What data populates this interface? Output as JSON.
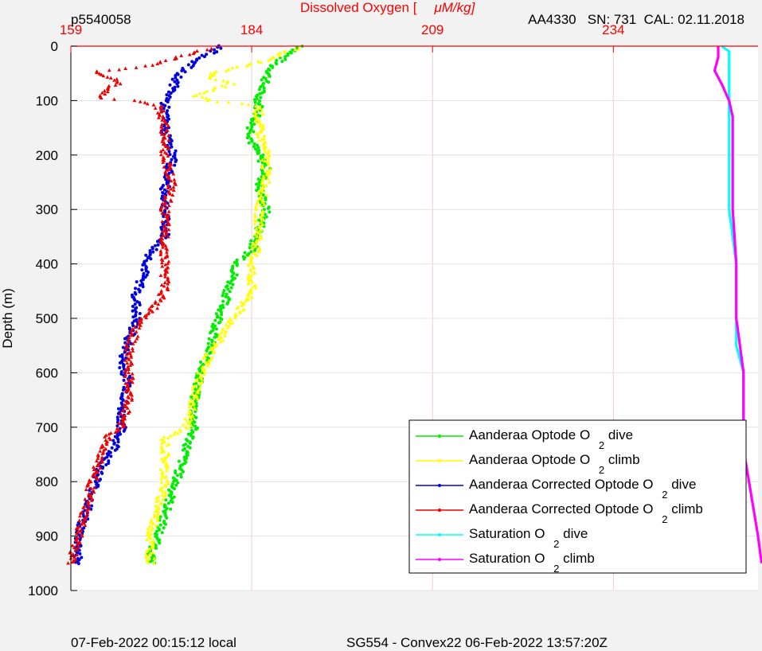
{
  "chart_data": {
    "type": "scatter",
    "top_left_label": "p5540058",
    "top_right_label": "AA4330   SN: 731  CAL: 02.11.2018",
    "title_prefix": "Dissolved Oxygen [",
    "title_unit": "μM/kg]",
    "ylabel": "Depth (m)",
    "footer_left": "07-Feb-2022 00:15:12 local",
    "footer_center": "SG554 - Convex22 06-Feb-2022 13:57:20Z",
    "xlim": [
      159,
      254
    ],
    "ylim": [
      0,
      1000
    ],
    "y_reversed": true,
    "x_ticks": [
      159,
      184,
      209,
      234
    ],
    "y_ticks": [
      0,
      100,
      200,
      300,
      400,
      500,
      600,
      700,
      800,
      900,
      1000
    ],
    "grid": true,
    "legend_position": "bottom-right",
    "colors": {
      "optode_dive": "#00ee00",
      "optode_climb": "#ffff00",
      "corrected_dive": "#0000dd",
      "corrected_climb": "#ee0000",
      "saturation_dive": "#00ffff",
      "saturation_climb": "#ff00ff"
    },
    "series": [
      {
        "key": "optode_dive",
        "name": "Aanderaa Optode O",
        "sub": "2",
        "suffix": "dive",
        "marker": "dot",
        "points": [
          [
            191,
            0
          ],
          [
            189,
            15
          ],
          [
            187,
            35
          ],
          [
            186,
            60
          ],
          [
            185,
            90
          ],
          [
            185,
            120
          ],
          [
            184,
            150
          ],
          [
            184,
            175
          ],
          [
            185,
            200
          ],
          [
            186,
            225
          ],
          [
            185,
            260
          ],
          [
            186,
            300
          ],
          [
            185,
            340
          ],
          [
            184,
            375
          ],
          [
            182,
            400
          ],
          [
            181,
            440
          ],
          [
            180,
            480
          ],
          [
            179,
            520
          ],
          [
            178,
            560
          ],
          [
            177,
            600
          ],
          [
            176,
            650
          ],
          [
            176,
            700
          ],
          [
            175,
            740
          ],
          [
            174,
            780
          ],
          [
            173,
            820
          ],
          [
            172,
            860
          ],
          [
            171,
            900
          ],
          [
            170,
            940
          ],
          [
            170,
            950
          ]
        ]
      },
      {
        "key": "optode_climb",
        "name": "Aanderaa Optode O",
        "sub": "2",
        "suffix": "climb",
        "marker": "tri",
        "points": [
          [
            190,
            5
          ],
          [
            188,
            15
          ],
          [
            185,
            30
          ],
          [
            180,
            45
          ],
          [
            178,
            55
          ],
          [
            181,
            70
          ],
          [
            176,
            90
          ],
          [
            178,
            100
          ],
          [
            185,
            110
          ],
          [
            185,
            150
          ],
          [
            186,
            200
          ],
          [
            186,
            250
          ],
          [
            185,
            300
          ],
          [
            185,
            350
          ],
          [
            184,
            400
          ],
          [
            184,
            450
          ],
          [
            182,
            490
          ],
          [
            180,
            530
          ],
          [
            178,
            570
          ],
          [
            177,
            600
          ],
          [
            176,
            650
          ],
          [
            175,
            700
          ],
          [
            172,
            720
          ],
          [
            172,
            760
          ],
          [
            172,
            800
          ],
          [
            171,
            850
          ],
          [
            170,
            900
          ],
          [
            170,
            950
          ]
        ]
      },
      {
        "key": "corrected_dive",
        "name": "Aanderaa Corrected Optode O",
        "sub": "2",
        "suffix": "dive",
        "marker": "dot",
        "points": [
          [
            180,
            0
          ],
          [
            178,
            15
          ],
          [
            176,
            30
          ],
          [
            174,
            50
          ],
          [
            173,
            80
          ],
          [
            172,
            105
          ],
          [
            172,
            130
          ],
          [
            172,
            160
          ],
          [
            173,
            185
          ],
          [
            173,
            210
          ],
          [
            172,
            260
          ],
          [
            172,
            300
          ],
          [
            172,
            350
          ],
          [
            170,
            380
          ],
          [
            169,
            420
          ],
          [
            168,
            460
          ],
          [
            168,
            500
          ],
          [
            167,
            540
          ],
          [
            166,
            580
          ],
          [
            167,
            620
          ],
          [
            166,
            660
          ],
          [
            166,
            700
          ],
          [
            165,
            740
          ],
          [
            163,
            780
          ],
          [
            162,
            820
          ],
          [
            161,
            860
          ],
          [
            160,
            900
          ],
          [
            160,
            950
          ]
        ]
      },
      {
        "key": "corrected_climb",
        "name": "Aanderaa Corrected Optode O",
        "sub": "2",
        "suffix": "climb",
        "marker": "tri",
        "points": [
          [
            178,
            5
          ],
          [
            174,
            20
          ],
          [
            170,
            35
          ],
          [
            164,
            45
          ],
          [
            162,
            48
          ],
          [
            166,
            65
          ],
          [
            164,
            80
          ],
          [
            163,
            95
          ],
          [
            168,
            100
          ],
          [
            171,
            110
          ],
          [
            172,
            140
          ],
          [
            172,
            200
          ],
          [
            173,
            250
          ],
          [
            172,
            300
          ],
          [
            172,
            350
          ],
          [
            172,
            400
          ],
          [
            172,
            450
          ],
          [
            170,
            490
          ],
          [
            168,
            520
          ],
          [
            167,
            560
          ],
          [
            167,
            600
          ],
          [
            167,
            650
          ],
          [
            166,
            700
          ],
          [
            164,
            720
          ],
          [
            163,
            760
          ],
          [
            162,
            800
          ],
          [
            161,
            850
          ],
          [
            160,
            900
          ],
          [
            159,
            950
          ]
        ]
      },
      {
        "key": "saturation_dive",
        "name": "Saturation O",
        "sub": "2",
        "suffix": "dive",
        "marker": "dot",
        "points": [
          [
            249,
            0
          ],
          [
            250,
            10
          ],
          [
            250,
            40
          ],
          [
            250,
            80
          ],
          [
            250,
            120
          ],
          [
            250,
            160
          ],
          [
            250,
            200
          ],
          [
            250,
            300
          ],
          [
            251,
            400
          ],
          [
            251,
            470
          ],
          [
            251,
            500
          ],
          [
            251,
            550
          ],
          [
            252,
            600
          ],
          [
            252,
            650
          ],
          [
            252,
            700
          ],
          [
            252,
            740
          ]
        ]
      },
      {
        "key": "saturation_climb",
        "name": "Saturation O",
        "sub": "2",
        "suffix": "climb",
        "marker": "dot",
        "points": [
          [
            248.5,
            0
          ],
          [
            248.5,
            20
          ],
          [
            248,
            45
          ],
          [
            249,
            70
          ],
          [
            250,
            100
          ],
          [
            250.5,
            130
          ],
          [
            250.5,
            160
          ],
          [
            250.5,
            200
          ],
          [
            250.5,
            300
          ],
          [
            251,
            400
          ],
          [
            251,
            470
          ],
          [
            251,
            500
          ],
          [
            251.5,
            550
          ],
          [
            252,
            600
          ],
          [
            252,
            650
          ],
          [
            252,
            700
          ],
          [
            252,
            740
          ],
          [
            252.5,
            780
          ],
          [
            253,
            820
          ],
          [
            253.5,
            860
          ],
          [
            254,
            900
          ],
          [
            254.5,
            950
          ]
        ]
      }
    ]
  }
}
